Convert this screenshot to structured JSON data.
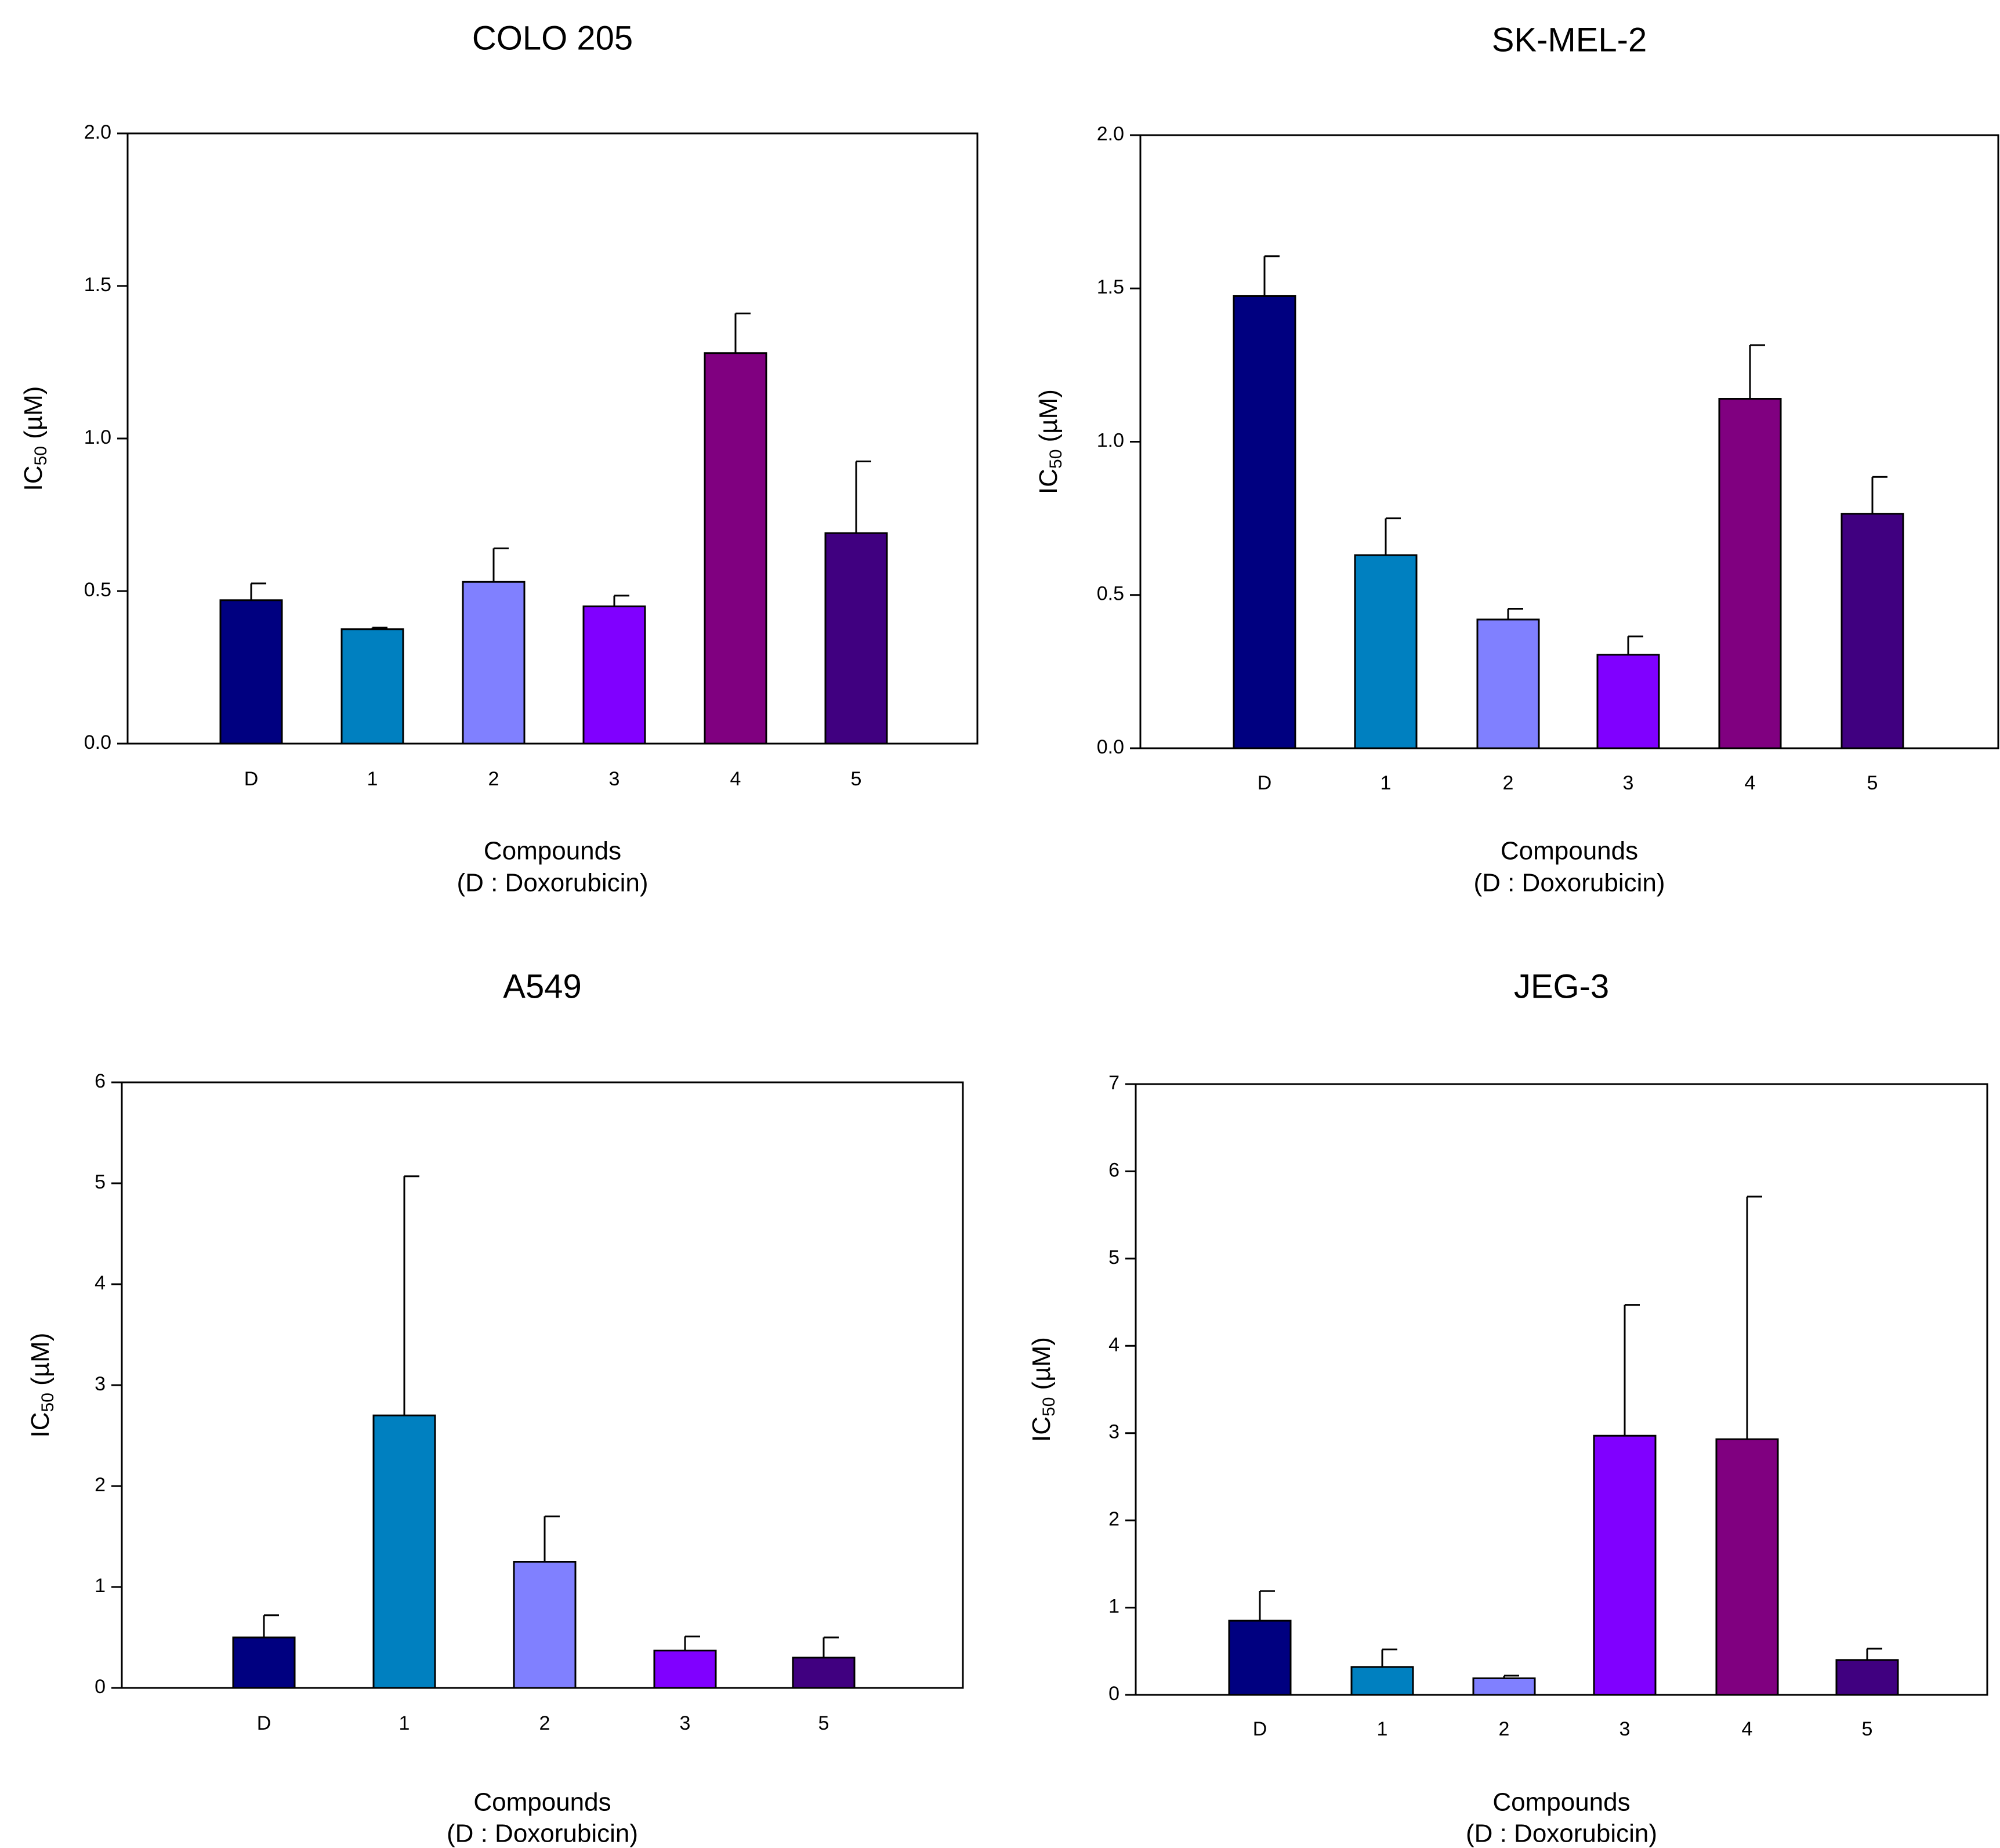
{
  "chart_data": [
    {
      "type": "bar",
      "title": "COLO 205",
      "xlabel": "Compounds",
      "xlabel_note": "(D : Doxorubicin)",
      "ylabel_main": "IC",
      "ylabel_sub": "50",
      "ylabel_unit": " (µM)",
      "ylim": [
        0,
        2.0
      ],
      "yticks": [
        "0.0",
        "0.5",
        "1.0",
        "1.5",
        "2.0"
      ],
      "ytick_values": [
        0,
        0.5,
        1.0,
        1.5,
        2.0
      ],
      "categories": [
        "D",
        "1",
        "2",
        "3",
        "4",
        "5"
      ],
      "values": [
        0.47,
        0.375,
        0.53,
        0.45,
        1.28,
        0.69
      ],
      "errors": [
        0.055,
        0.005,
        0.11,
        0.035,
        0.13,
        0.235
      ],
      "colors": [
        "#000080",
        "#0080c0",
        "#8080ff",
        "#8000ff",
        "#800080",
        "#400080"
      ],
      "grid": false
    },
    {
      "type": "bar",
      "title": "SK-MEL-2",
      "xlabel": "Compounds",
      "xlabel_note": "(D : Doxorubicin)",
      "ylabel_main": "IC",
      "ylabel_sub": "50",
      "ylabel_unit": " (µM)",
      "ylim": [
        0,
        2.0
      ],
      "yticks": [
        "0.0",
        "0.5",
        "1.0",
        "1.5",
        "2.0"
      ],
      "ytick_values": [
        0,
        0.5,
        1.0,
        1.5,
        2.0
      ],
      "categories": [
        "D",
        "1",
        "2",
        "3",
        "4",
        "5"
      ],
      "values": [
        1.475,
        0.63,
        0.42,
        0.305,
        1.14,
        0.765
      ],
      "errors": [
        0.13,
        0.12,
        0.035,
        0.06,
        0.175,
        0.12
      ],
      "colors": [
        "#000080",
        "#0080c0",
        "#8080ff",
        "#8000ff",
        "#800080",
        "#400080"
      ],
      "grid": false
    },
    {
      "type": "bar",
      "title": "A549",
      "xlabel": "Compounds",
      "xlabel_note": "(D : Doxorubicin)",
      "ylabel_main": "IC",
      "ylabel_sub": "50",
      "ylabel_unit": " (µM)",
      "ylim": [
        0,
        6
      ],
      "yticks": [
        "0",
        "1",
        "2",
        "3",
        "4",
        "5",
        "6"
      ],
      "ytick_values": [
        0,
        1,
        2,
        3,
        4,
        5,
        6
      ],
      "categories": [
        "D",
        "1",
        "2",
        "3",
        "5"
      ],
      "values": [
        0.5,
        2.7,
        1.25,
        0.37,
        0.3
      ],
      "errors": [
        0.22,
        2.37,
        0.45,
        0.14,
        0.2
      ],
      "colors": [
        "#000080",
        "#0080c0",
        "#8080ff",
        "#8000ff",
        "#400080"
      ],
      "grid": false
    },
    {
      "type": "bar",
      "title": "JEG-3",
      "xlabel": "Compounds",
      "xlabel_note": "(D : Doxorubicin)",
      "ylabel_main": "IC",
      "ylabel_sub": "50",
      "ylabel_unit": " (µM)",
      "ylim": [
        0,
        7
      ],
      "yticks": [
        "0",
        "1",
        "2",
        "3",
        "4",
        "5",
        "6",
        "7"
      ],
      "ytick_values": [
        0,
        1,
        2,
        3,
        4,
        5,
        6,
        7
      ],
      "categories": [
        "D",
        "1",
        "2",
        "3",
        "4",
        "5"
      ],
      "values": [
        0.85,
        0.32,
        0.19,
        2.97,
        2.93,
        0.4
      ],
      "errors": [
        0.34,
        0.2,
        0.03,
        1.5,
        2.78,
        0.13
      ],
      "colors": [
        "#000080",
        "#0080c0",
        "#8080ff",
        "#8000ff",
        "#800080",
        "#400080"
      ],
      "grid": false
    }
  ]
}
